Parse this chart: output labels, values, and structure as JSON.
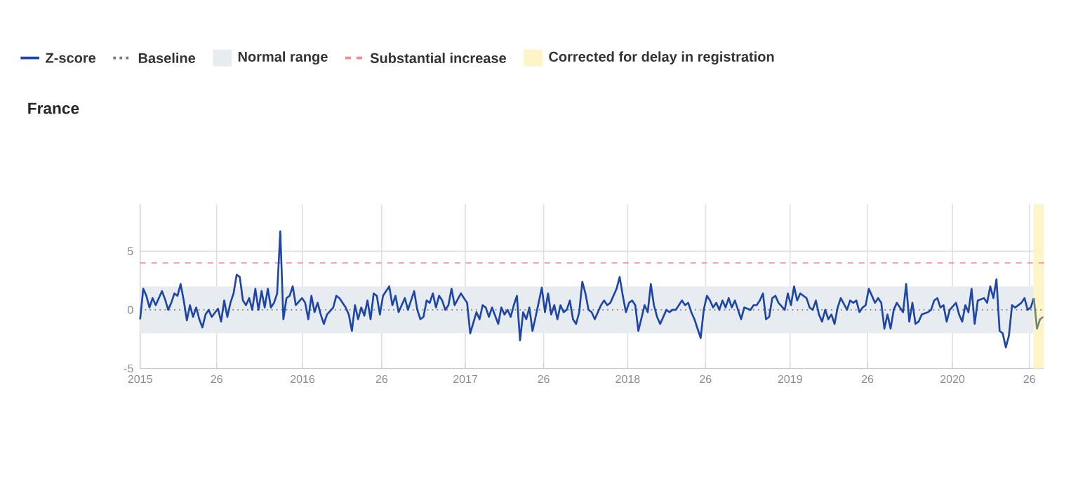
{
  "chart_data": {
    "type": "line",
    "title": "France",
    "x": [
      "2015-01-01",
      "2015-01-08",
      "2015-01-15",
      "2015-01-22",
      "2015-01-29",
      "2015-02-05",
      "2015-02-19",
      "2015-02-26",
      "2015-03-05",
      "2015-03-12",
      "2015-03-19",
      "2015-03-26",
      "2015-04-02",
      "2015-04-09",
      "2015-04-16",
      "2015-04-23",
      "2015-04-30",
      "2015-05-07",
      "2015-05-14",
      "2015-05-21",
      "2015-05-28",
      "2015-06-04",
      "2015-06-11",
      "2015-06-25",
      "2015-07-02",
      "2015-07-09",
      "2015-07-16",
      "2015-07-23",
      "2015-07-30",
      "2015-08-06",
      "2015-08-13",
      "2015-08-20",
      "2015-08-27",
      "2015-09-03",
      "2015-09-10",
      "2015-09-17",
      "2015-09-24",
      "2015-10-01",
      "2015-10-08",
      "2015-10-15",
      "2015-10-22",
      "2015-10-29",
      "2015-11-05",
      "2015-11-12",
      "2015-11-19",
      "2015-11-26",
      "2015-12-03",
      "2015-12-10",
      "2015-12-17",
      "2015-12-31",
      "2016-01-07",
      "2016-01-14",
      "2016-01-21",
      "2016-01-28",
      "2016-02-04",
      "2016-02-11",
      "2016-02-18",
      "2016-02-25",
      "2016-03-10",
      "2016-03-17",
      "2016-03-24",
      "2016-04-07",
      "2016-04-14",
      "2016-04-21",
      "2016-04-28",
      "2016-05-05",
      "2016-05-12",
      "2016-05-19",
      "2016-05-26",
      "2016-06-02",
      "2016-06-09",
      "2016-06-16",
      "2016-06-23",
      "2016-06-30",
      "2016-07-14",
      "2016-07-21",
      "2016-07-28",
      "2016-08-04",
      "2016-08-18",
      "2016-08-25",
      "2016-09-08",
      "2016-09-15",
      "2016-09-22",
      "2016-09-29",
      "2016-10-06",
      "2016-10-13",
      "2016-10-20",
      "2016-10-27",
      "2016-11-03",
      "2016-11-10",
      "2016-11-17",
      "2016-11-24",
      "2016-12-01",
      "2016-12-08",
      "2016-12-22",
      "2016-12-29",
      "2017-01-05",
      "2017-01-12",
      "2017-01-26",
      "2017-02-02",
      "2017-02-09",
      "2017-02-16",
      "2017-02-23",
      "2017-03-02",
      "2017-03-16",
      "2017-03-23",
      "2017-03-30",
      "2017-04-06",
      "2017-04-13",
      "2017-04-20",
      "2017-04-27",
      "2017-05-04",
      "2017-05-11",
      "2017-05-18",
      "2017-05-25",
      "2017-06-01",
      "2017-06-08",
      "2017-06-22",
      "2017-06-29",
      "2017-07-06",
      "2017-07-13",
      "2017-07-20",
      "2017-07-27",
      "2017-08-03",
      "2017-08-10",
      "2017-08-17",
      "2017-08-24",
      "2017-08-31",
      "2017-09-07",
      "2017-09-14",
      "2017-09-21",
      "2017-09-28",
      "2017-10-05",
      "2017-10-12",
      "2017-10-19",
      "2017-10-26",
      "2017-11-02",
      "2017-11-09",
      "2017-11-16",
      "2017-11-23",
      "2017-12-07",
      "2017-12-14",
      "2017-12-21",
      "2017-12-28",
      "2018-01-04",
      "2018-01-11",
      "2018-01-18",
      "2018-01-25",
      "2018-02-08",
      "2018-02-15",
      "2018-02-22",
      "2018-03-01",
      "2018-03-08",
      "2018-03-15",
      "2018-03-29",
      "2018-04-05",
      "2018-04-12",
      "2018-04-19",
      "2018-05-03",
      "2018-05-10",
      "2018-05-17",
      "2018-05-24",
      "2018-05-31",
      "2018-06-14",
      "2018-06-21",
      "2018-06-28",
      "2018-07-05",
      "2018-07-12",
      "2018-07-19",
      "2018-07-26",
      "2018-08-02",
      "2018-08-09",
      "2018-08-16",
      "2018-08-23",
      "2018-08-30",
      "2018-09-06",
      "2018-09-13",
      "2018-09-20",
      "2018-10-04",
      "2018-10-11",
      "2018-10-18",
      "2018-10-25",
      "2018-11-01",
      "2018-11-08",
      "2018-11-15",
      "2018-11-22",
      "2018-11-29",
      "2018-12-06",
      "2018-12-20",
      "2018-12-27",
      "2019-01-03",
      "2019-01-10",
      "2019-01-17",
      "2019-01-24",
      "2019-02-07",
      "2019-02-14",
      "2019-02-21",
      "2019-02-28",
      "2019-03-07",
      "2019-03-14",
      "2019-03-21",
      "2019-03-28",
      "2019-04-04",
      "2019-04-11",
      "2019-04-18",
      "2019-04-25",
      "2019-05-09",
      "2019-05-16",
      "2019-05-23",
      "2019-05-30",
      "2019-06-06",
      "2019-06-13",
      "2019-06-20",
      "2019-06-27",
      "2019-07-11",
      "2019-07-18",
      "2019-07-25",
      "2019-08-01",
      "2019-08-08",
      "2019-08-15",
      "2019-08-22",
      "2019-08-29",
      "2019-09-12",
      "2019-09-19",
      "2019-09-26",
      "2019-10-03",
      "2019-10-10",
      "2019-10-17",
      "2019-10-24",
      "2019-11-07",
      "2019-11-14",
      "2019-11-21",
      "2019-11-28",
      "2019-12-05",
      "2019-12-12",
      "2019-12-19",
      "2019-12-26",
      "2020-01-09",
      "2020-01-16",
      "2020-01-23",
      "2020-01-30",
      "2020-02-06",
      "2020-02-13",
      "2020-02-20",
      "2020-02-27",
      "2020-03-12",
      "2020-03-19",
      "2020-03-26",
      "2020-04-02",
      "2020-04-09",
      "2020-04-16",
      "2020-04-23",
      "2020-04-30",
      "2020-05-07",
      "2020-05-14",
      "2020-05-21",
      "2020-06-04",
      "2020-06-11",
      "2020-06-18",
      "2020-06-25",
      "2020-07-02"
    ],
    "series": [
      {
        "name": "Z-score",
        "color": "#1f46a6",
        "values": [
          -0.8,
          1.8,
          1.2,
          0.2,
          1.0,
          0.4,
          1.6,
          0.9,
          0.0,
          0.6,
          1.4,
          1.2,
          2.2,
          0.8,
          -0.9,
          0.4,
          -0.6,
          0.2,
          -0.8,
          -1.5,
          -0.4,
          0.0,
          -0.6,
          0.1,
          -1.0,
          0.8,
          -0.6,
          0.6,
          1.4,
          3.0,
          2.8,
          0.8,
          0.4,
          1.0,
          0.0,
          1.8,
          0.0,
          1.6,
          0.2,
          1.8,
          0.2,
          0.6,
          1.4,
          6.7,
          -0.8,
          1.0,
          1.2,
          2.0,
          0.4,
          1.0,
          0.6,
          -0.8,
          1.2,
          -0.2,
          0.6,
          -0.4,
          -1.2,
          -0.4,
          0.2,
          1.2,
          1.0,
          0.2,
          -0.4,
          -1.8,
          0.4,
          -0.8,
          0.2,
          -0.5,
          0.8,
          -0.8,
          1.4,
          1.2,
          -0.4,
          1.2,
          2.0,
          0.4,
          1.2,
          -0.2,
          1.0,
          0.0,
          1.6,
          0.0,
          -0.8,
          -0.6,
          0.8,
          0.6,
          1.4,
          0.2,
          1.2,
          0.8,
          0.0,
          0.4,
          1.8,
          0.4,
          1.4,
          1.0,
          0.6,
          -2.0,
          -0.2,
          -0.8,
          0.4,
          0.2,
          -0.6,
          0.2,
          -1.2,
          0.2,
          -0.4,
          0.0,
          -0.6,
          0.4,
          1.2,
          -2.6,
          -0.2,
          -0.8,
          0.2,
          -1.8,
          -0.6,
          1.9,
          -0.2,
          1.4,
          -0.4,
          0.4,
          -0.8,
          0.4,
          -0.2,
          0.0,
          0.8,
          -0.8,
          -1.2,
          -0.2,
          2.4,
          1.4,
          0.0,
          -0.2,
          -0.8,
          -0.2,
          0.4,
          0.8,
          0.4,
          0.6,
          1.8,
          2.8,
          1.2,
          -0.2,
          0.6,
          0.8,
          0.4,
          -1.8,
          0.4,
          -0.2,
          2.2,
          0.4,
          -0.6,
          -1.2,
          0.0,
          -0.2,
          0.0,
          0.0,
          0.8,
          0.4,
          0.6,
          -0.2,
          -0.8,
          -2.4,
          0.0,
          1.2,
          0.8,
          0.2,
          0.6,
          0.0,
          0.8,
          0.2,
          1.0,
          0.2,
          0.8,
          0.0,
          -0.8,
          0.2,
          0.0,
          0.4,
          0.4,
          0.8,
          1.4,
          -0.8,
          -0.6,
          1.0,
          1.2,
          0.6,
          0.0,
          1.4,
          0.4,
          2.0,
          0.8,
          1.4,
          1.0,
          0.2,
          0.0,
          0.8,
          -0.4,
          -1.0,
          0.0,
          -0.8,
          -0.4,
          -1.2,
          0.2,
          1.0,
          0.0,
          0.8,
          0.6,
          0.8,
          -0.2,
          0.2,
          0.4,
          1.8,
          0.6,
          1.0,
          0.6,
          -1.6,
          -0.4,
          -1.6,
          0.0,
          0.6,
          -0.2,
          2.2,
          -1.0,
          0.6,
          -1.2,
          -1.0,
          -0.4,
          -0.2,
          0.0,
          0.8,
          1.0,
          0.2,
          0.4,
          -1.0,
          0.0,
          0.6,
          -0.4,
          -1.0,
          0.4,
          -0.2,
          1.8,
          -1.2,
          0.8,
          1.0,
          0.6,
          2.0,
          1.0,
          2.6,
          -1.8,
          -2.0,
          -3.2,
          -2.2,
          0.4,
          0.2,
          0.6,
          1.0,
          0.0,
          0.2,
          1.0
        ]
      },
      {
        "color": "#6e8580",
        "x": [
          "2020-07-02",
          "2020-07-09",
          "2020-07-16",
          "2020-07-23"
        ],
        "values": [
          1.0,
          -1.6,
          -0.8,
          -0.6
        ]
      }
    ],
    "xlim": [
      "2015-01-01",
      "2020-07-25"
    ],
    "ylim": [
      -5,
      9
    ],
    "xticks": [
      {
        "value": "2015-01-01",
        "label": "2015"
      },
      {
        "value": "2015-06-22",
        "label": "26"
      },
      {
        "value": "2016-01-01",
        "label": "2016"
      },
      {
        "value": "2016-06-27",
        "label": "26"
      },
      {
        "value": "2017-01-01",
        "label": "2017"
      },
      {
        "value": "2017-06-26",
        "label": "26"
      },
      {
        "value": "2018-01-01",
        "label": "2018"
      },
      {
        "value": "2018-06-25",
        "label": "26"
      },
      {
        "value": "2019-01-01",
        "label": "2019"
      },
      {
        "value": "2019-06-24",
        "label": "26"
      },
      {
        "value": "2020-01-01",
        "label": "2020"
      },
      {
        "value": "2020-06-22",
        "label": "26"
      }
    ],
    "yticks": [
      -5,
      0,
      5
    ],
    "ref_lines": [
      {
        "axis": "y",
        "value": 0,
        "label": "Baseline",
        "color": "#777777",
        "line_style": "dotted"
      },
      {
        "axis": "y",
        "value": 4,
        "label": "Substantial increase",
        "color": "#f28b8b",
        "line_style": "dashed"
      }
    ],
    "bands": [
      {
        "axis": "y",
        "from": -2,
        "to": 2,
        "label": "Normal range",
        "color": "#e7ecf1"
      },
      {
        "axis": "x",
        "from": "2020-07-01",
        "to": "2020-07-25",
        "label": "Corrected for delay in registration",
        "color": "#fdf4c8"
      }
    ],
    "grid": true,
    "legend": "top"
  }
}
